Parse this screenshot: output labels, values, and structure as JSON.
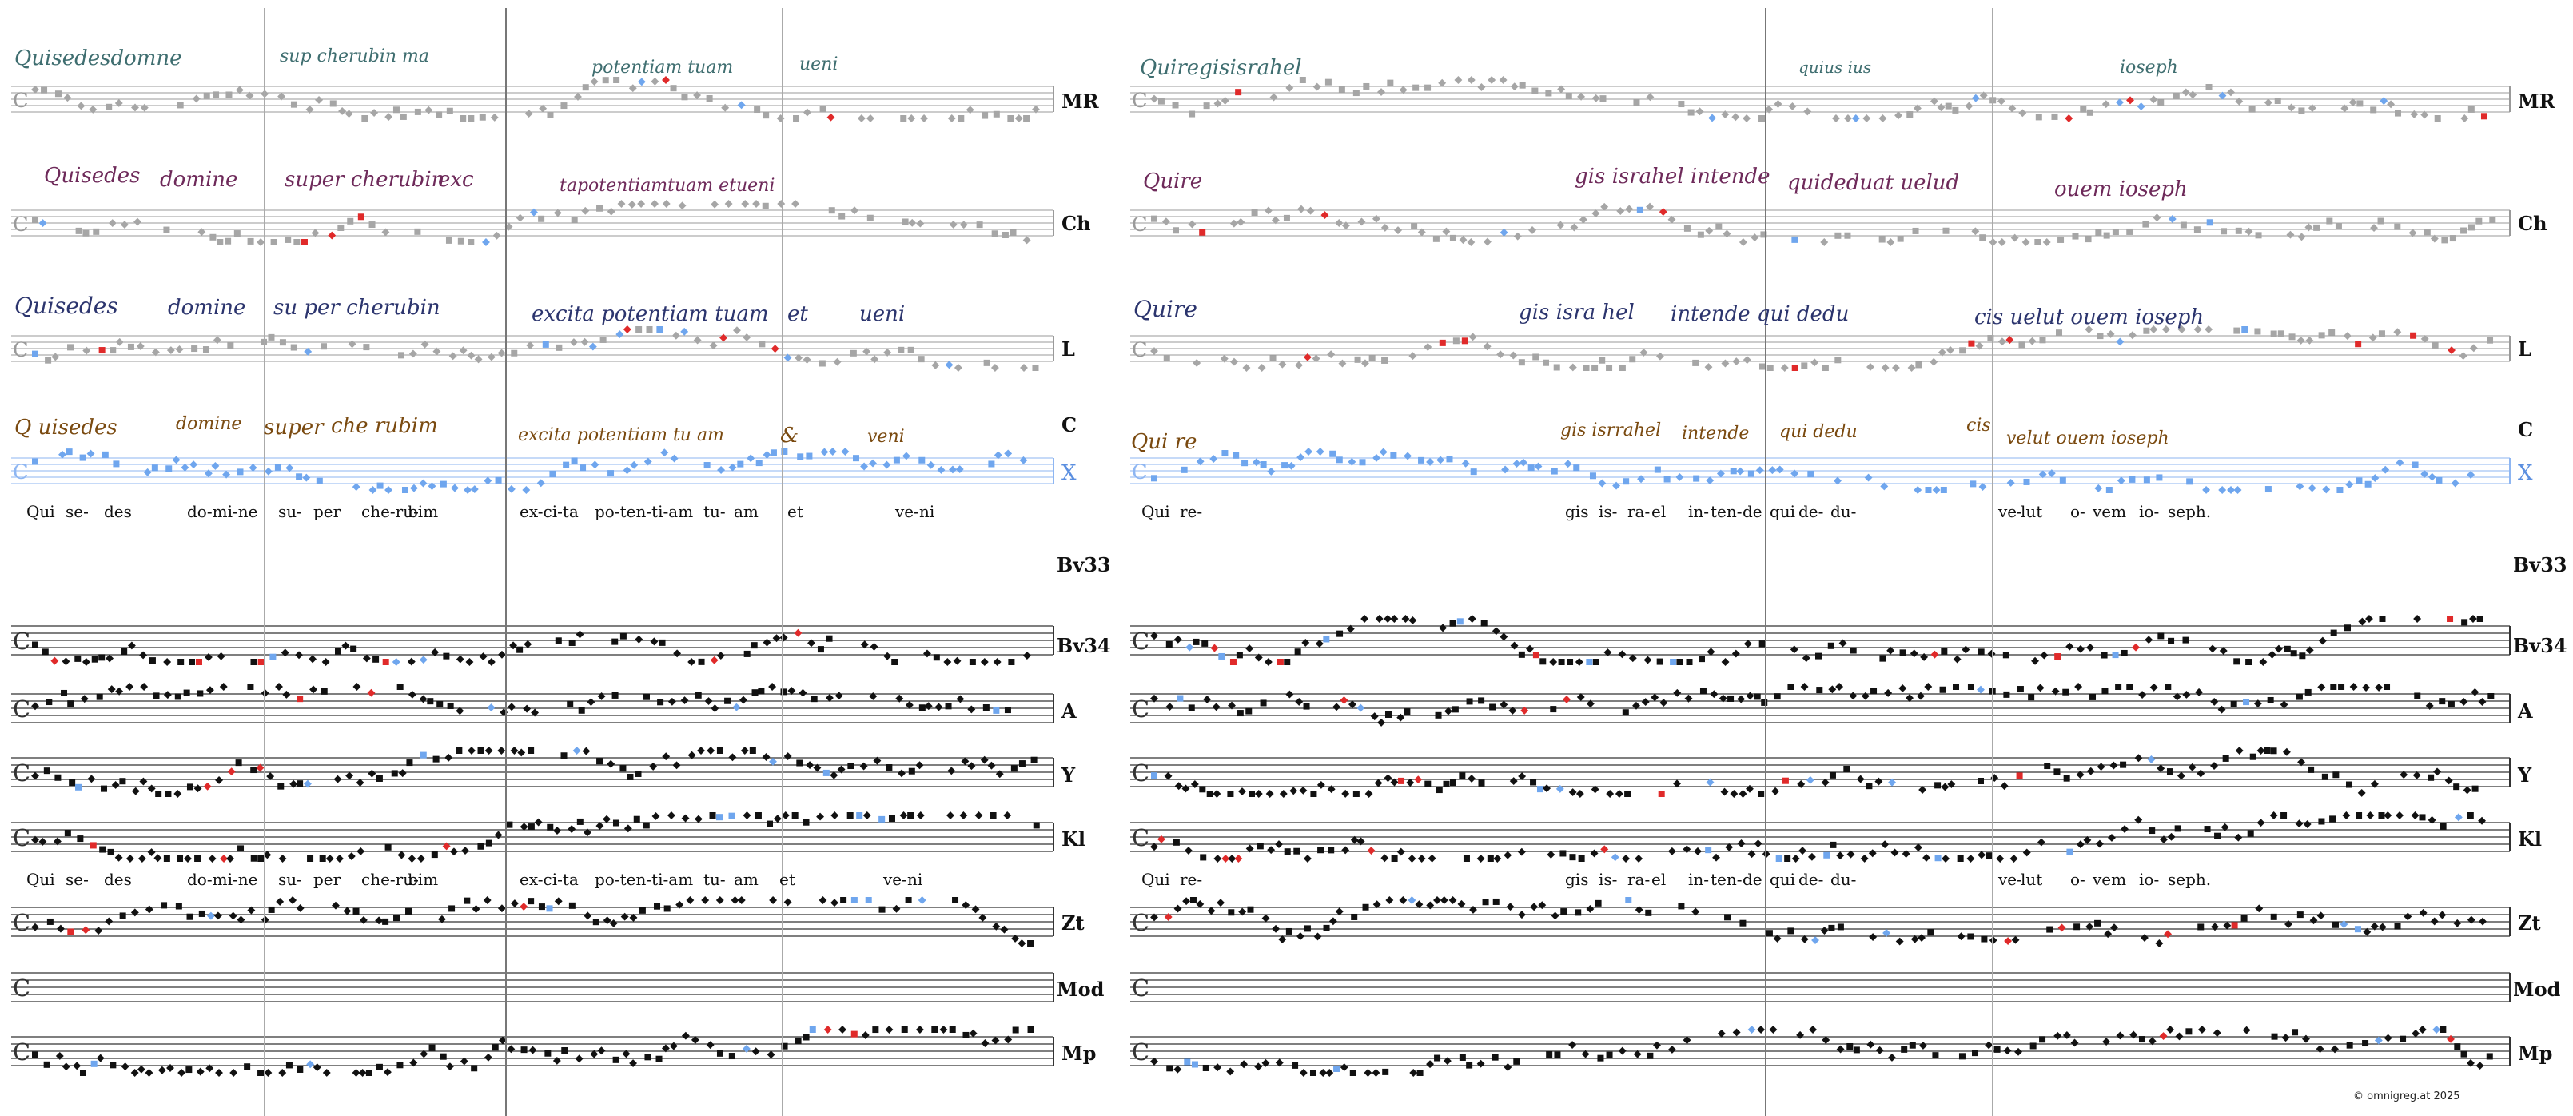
{
  "colors": {
    "neume_black": "#111111",
    "neume_grey": "#a6a6a6",
    "neume_blue": "#6fa6ee",
    "neume_red": "#e02a2a",
    "ms_MR": "#3f6e70",
    "ms_Ch": "#6e2a5a",
    "ms_L": "#2c356e",
    "ms_C": "#7a4a10",
    "x_staff": "#8eb6f2"
  },
  "staff_labels": {
    "MR": "MR",
    "Ch": "Ch",
    "L": "L",
    "C": "C",
    "X": "X",
    "Bv33": "Bv33",
    "Bv34": "Bv34",
    "A": "A",
    "Y": "Y",
    "Kl": "Kl",
    "Zt": "Zt",
    "Mod": "Mod",
    "Mp": "Mp"
  },
  "lyrics_top": {
    "left": [
      "Qui",
      "se-",
      "des",
      "do-mi-ne",
      "su-",
      "per",
      "che-ru-",
      "bim",
      "ex-ci-ta",
      "po-ten-ti-am",
      "tu-",
      "am",
      "et",
      "ve-",
      "ni"
    ],
    "right": [
      "Qui",
      "re-",
      "gis",
      "is-",
      "ra-",
      "el",
      "in-",
      "ten-",
      "de",
      "qui",
      "de-",
      "du-",
      "ve-",
      "lut",
      "o-",
      "vem",
      "io-",
      "seph."
    ]
  },
  "lyrics_bottom": {
    "left": [
      "Qui",
      "se-",
      "des",
      "do-mi-ne",
      "su-",
      "per",
      "che-ru-",
      "bim",
      "ex-ci-ta",
      "po-ten-ti-am",
      "tu-",
      "am",
      "et",
      "ve-",
      "ni"
    ],
    "right": [
      "Qui",
      "re-",
      "gis",
      "is-",
      "ra-",
      "el",
      "in-",
      "ten-",
      "de",
      "qui",
      "de-",
      "du-",
      "ve-",
      "lut",
      "o-",
      "vem",
      "io-",
      "seph."
    ]
  },
  "manuscript_text": {
    "MR": [
      "Quisedesdomne",
      "sup cherubin ma",
      "potentiam tuam",
      "ueni",
      "Quiregisisrahel",
      "quius ius",
      "ioseph"
    ],
    "Ch": [
      "Quisedes",
      "domine",
      "super cherubin",
      "exc",
      "tapotentiamtuam etueni",
      "Quire",
      "gis israhel intende",
      "quideduat uelud",
      "ouem ioseph"
    ],
    "L": [
      "Quisedes",
      "domine",
      "su per cherubin",
      "excita potentiam tuam",
      "et",
      "ueni",
      "Quire",
      "gis isra hel",
      "intende qui dedu",
      "cis uelut ouem ioseph"
    ],
    "C": [
      "Q uisedes",
      "domine",
      "super",
      "che rubim",
      "excita potentiam tu am",
      "&",
      "veni",
      "Qui re",
      "gis isrrahel",
      "intende",
      "qui dedu",
      "cis",
      "velut ouem ioseph"
    ]
  },
  "copyright": "©  omnigreg.at    2025"
}
